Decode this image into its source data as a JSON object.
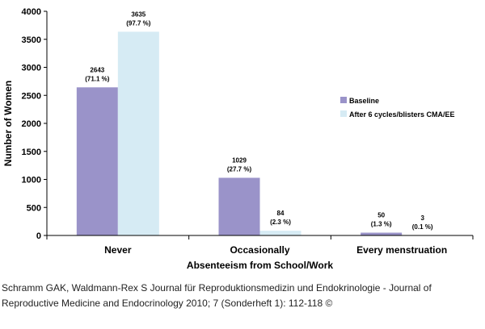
{
  "chart_data": {
    "type": "bar",
    "categories": [
      "Never",
      "Occasionally",
      "Every menstruation"
    ],
    "series": [
      {
        "name": "Baseline",
        "color": "#9a93c9",
        "values": [
          2643,
          1029,
          50
        ],
        "labels": [
          [
            "2643",
            "(71.1 %)"
          ],
          [
            "1029",
            "(27.7 %)"
          ],
          [
            "50",
            "(1.3 %)"
          ]
        ]
      },
      {
        "name": "After 6 cycles/blisters CMA/EE",
        "color": "#d6ebf4",
        "values": [
          3635,
          84,
          3
        ],
        "labels": [
          [
            "3635",
            "(97.7 %)"
          ],
          [
            "84",
            "(2.3 %)"
          ],
          [
            "3",
            "(0.1 %)"
          ]
        ]
      }
    ],
    "xlabel": "Absenteeism from  School/Work",
    "ylabel": "Number  of Women",
    "ylim": [
      0,
      4000
    ],
    "yticks": [
      0,
      500,
      1000,
      1500,
      2000,
      2500,
      3000,
      3500,
      4000
    ],
    "legend_position": "right"
  },
  "caption": {
    "line1": "Schramm GAK, Waldmann-Rex S Journal für Reproduktionsmedizin und Endokrinologie - Journal of",
    "line2": "Reproductive Medicine and Endocrinology 2010; 7 (Sonderheft 1): 112-118 ©"
  }
}
